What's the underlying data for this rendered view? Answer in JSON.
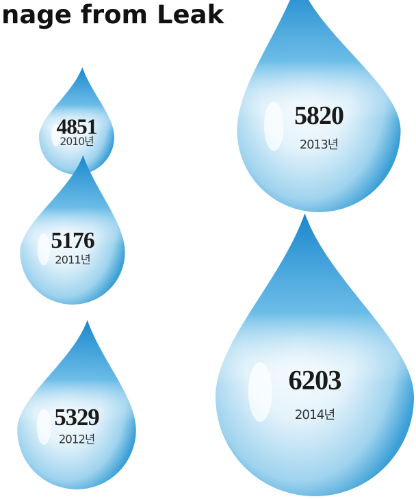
{
  "chart_data": {
    "type": "pictogram",
    "title": "nage from Leak",
    "categories": [
      "2010년",
      "2011년",
      "2012년",
      "2013년",
      "2014년"
    ],
    "values": [
      4851,
      5176,
      5329,
      5820,
      6203
    ]
  }
}
